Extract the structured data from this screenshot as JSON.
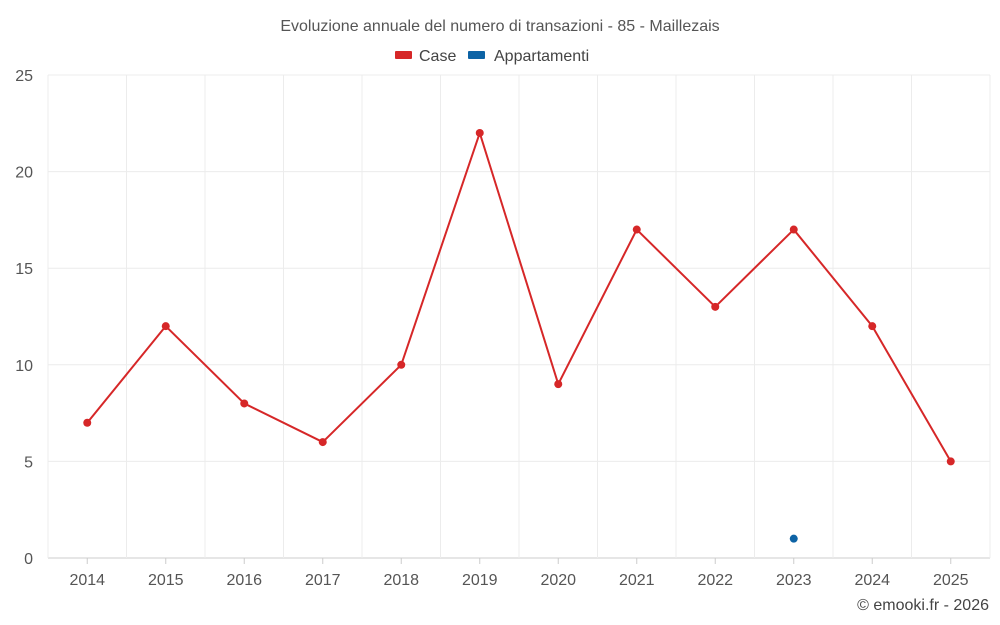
{
  "chart_data": {
    "type": "line",
    "title": "Evoluzione annuale del numero di transazioni - 85 - Maillezais",
    "categories": [
      "2014",
      "2015",
      "2016",
      "2017",
      "2018",
      "2019",
      "2020",
      "2021",
      "2022",
      "2023",
      "2024",
      "2025"
    ],
    "series": [
      {
        "name": "Case",
        "color": "#d62728",
        "values": [
          7,
          12,
          8,
          6,
          10,
          22,
          9,
          17,
          13,
          17,
          12,
          5
        ]
      },
      {
        "name": "Appartamenti",
        "color": "#0d63a5",
        "values": [
          null,
          null,
          null,
          null,
          null,
          null,
          null,
          null,
          null,
          1,
          null,
          null
        ]
      }
    ],
    "ylim": [
      0,
      25
    ],
    "yticks": [
      0,
      5,
      10,
      15,
      20,
      25
    ],
    "grid": true,
    "legend": "top-center",
    "xlabel": "",
    "ylabel": ""
  },
  "credit": "© emooki.fr - 2026"
}
